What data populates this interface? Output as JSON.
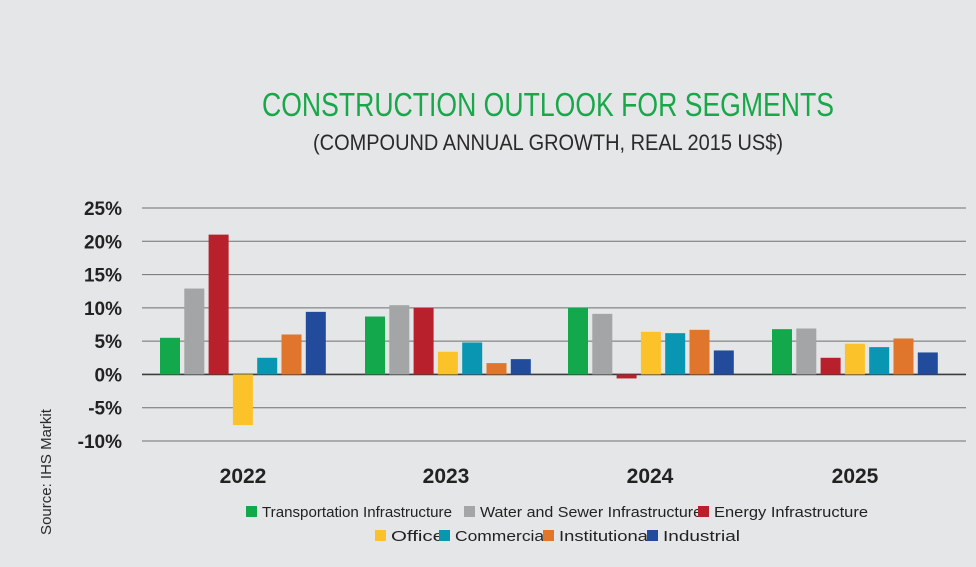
{
  "chart_data": {
    "type": "bar",
    "title": "CONSTRUCTION OUTLOOK FOR SEGMENTS",
    "subtitle": "(COMPOUND ANNUAL GROWTH, REAL 2015 US$)",
    "source": "Source: IHS Markit",
    "xlabel": "",
    "ylabel": "",
    "ylim": [
      -10,
      25
    ],
    "yticks": [
      25,
      20,
      15,
      10,
      5,
      0,
      -5,
      -10
    ],
    "ytick_labels": [
      "25%",
      "20%",
      "15%",
      "10%",
      "5%",
      "0%",
      "-5%",
      "-10%"
    ],
    "grid": true,
    "legend_position": "bottom",
    "categories": [
      "2022",
      "2023",
      "2024",
      "2025"
    ],
    "series": [
      {
        "name": "Transportation Infrastructure",
        "color": "#12a84b",
        "values": [
          5.5,
          8.7,
          10.0,
          6.8
        ]
      },
      {
        "name": "Water and Sewer Infrastructure",
        "color": "#a3a5a7",
        "values": [
          12.9,
          10.4,
          9.1,
          6.9
        ]
      },
      {
        "name": "Energy Infrastructure",
        "color": "#b8202b",
        "values": [
          21.0,
          10.0,
          -0.6,
          2.5
        ]
      },
      {
        "name": "Office",
        "color": "#fcc22a",
        "values": [
          -7.6,
          3.4,
          6.4,
          4.6
        ]
      },
      {
        "name": "Commercial",
        "color": "#0896b3",
        "values": [
          2.5,
          4.8,
          6.2,
          4.1
        ]
      },
      {
        "name": "Institutional",
        "color": "#e0762c",
        "values": [
          6.0,
          1.7,
          6.7,
          5.4
        ]
      },
      {
        "name": "Industrial",
        "color": "#234b9b",
        "values": [
          9.4,
          2.3,
          3.6,
          3.3
        ]
      }
    ]
  },
  "colors": {
    "title": "#18a84a",
    "subtitle": "#2a2a2a",
    "background": "#e4e6e7",
    "gridline": "#555555"
  }
}
